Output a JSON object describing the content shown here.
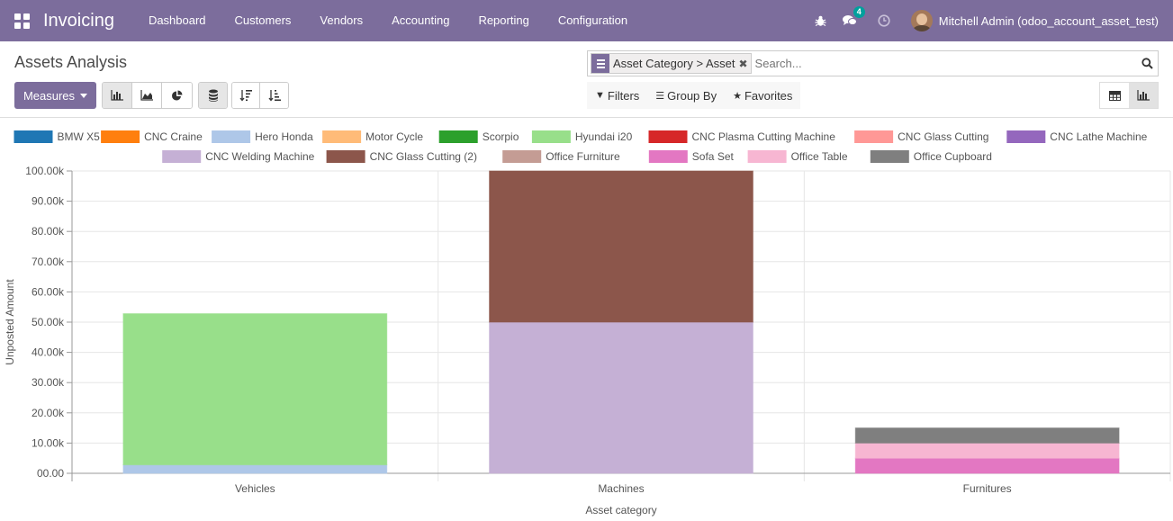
{
  "navbar": {
    "app_title": "Invoicing",
    "menu": [
      "Dashboard",
      "Customers",
      "Vendors",
      "Accounting",
      "Reporting",
      "Configuration"
    ],
    "message_count": "4",
    "user_name": "Mitchell Admin (odoo_account_asset_test)",
    "icons": [
      "apps-grid-icon",
      "bug-icon",
      "chat-icon",
      "clock-icon"
    ]
  },
  "control_panel": {
    "breadcrumb": "Assets Analysis",
    "facet_label": "Asset Category > Asset",
    "search_placeholder": "Search...",
    "measures_label": "Measures",
    "filters_label": "Filters",
    "group_by_label": "Group By",
    "favorites_label": "Favorites"
  },
  "colors": {
    "brand": "#7c6d9c",
    "badge": "#00a09d"
  },
  "chart_data": {
    "type": "bar",
    "stacked": true,
    "categories": [
      "Vehicles",
      "Machines",
      "Furnitures"
    ],
    "xlabel": "Asset category",
    "ylabel": "Unposted Amount",
    "ylim": [
      0,
      100000
    ],
    "yticks": [
      "00.00",
      "10.00k",
      "20.00k",
      "30.00k",
      "40.00k",
      "50.00k",
      "60.00k",
      "70.00k",
      "80.00k",
      "90.00k",
      "100.00k"
    ],
    "legend_position": "top",
    "series": [
      {
        "name": "BMW X5",
        "color": "#1f77b4",
        "values": [
          0,
          0,
          0
        ]
      },
      {
        "name": "CNC Craine",
        "color": "#ff7f0e",
        "values": [
          0,
          0,
          0
        ]
      },
      {
        "name": "Hero Honda",
        "color": "#aec7e8",
        "values": [
          2800,
          0,
          0
        ]
      },
      {
        "name": "Motor Cycle",
        "color": "#ffbb78",
        "values": [
          0,
          0,
          0
        ]
      },
      {
        "name": "Scorpio",
        "color": "#2ca02c",
        "values": [
          0,
          0,
          0
        ]
      },
      {
        "name": "Hyundai i20",
        "color": "#98df8a",
        "values": [
          50000,
          0,
          0
        ]
      },
      {
        "name": "CNC Plasma Cutting Machine",
        "color": "#d62728",
        "values": [
          0,
          0,
          0
        ]
      },
      {
        "name": "CNC Glass Cutting",
        "color": "#ff9896",
        "values": [
          0,
          0,
          0
        ]
      },
      {
        "name": "CNC Lathe Machine",
        "color": "#9467bd",
        "values": [
          0,
          0,
          0
        ]
      },
      {
        "name": "CNC Welding Machine",
        "color": "#c5b0d5",
        "values": [
          0,
          50000,
          0
        ]
      },
      {
        "name": "CNC Glass Cutting (2)",
        "color": "#8c564b",
        "values": [
          0,
          50000,
          0
        ]
      },
      {
        "name": "Office Furniture",
        "color": "#c49c94",
        "values": [
          0,
          0,
          0
        ]
      },
      {
        "name": "Sofa Set",
        "color": "#e377c2",
        "values": [
          0,
          0,
          5000
        ]
      },
      {
        "name": "Office Table",
        "color": "#f7b6d2",
        "values": [
          0,
          0,
          5000
        ]
      },
      {
        "name": "Office Cupboard",
        "color": "#7f7f7f",
        "values": [
          0,
          0,
          5000
        ]
      }
    ]
  }
}
